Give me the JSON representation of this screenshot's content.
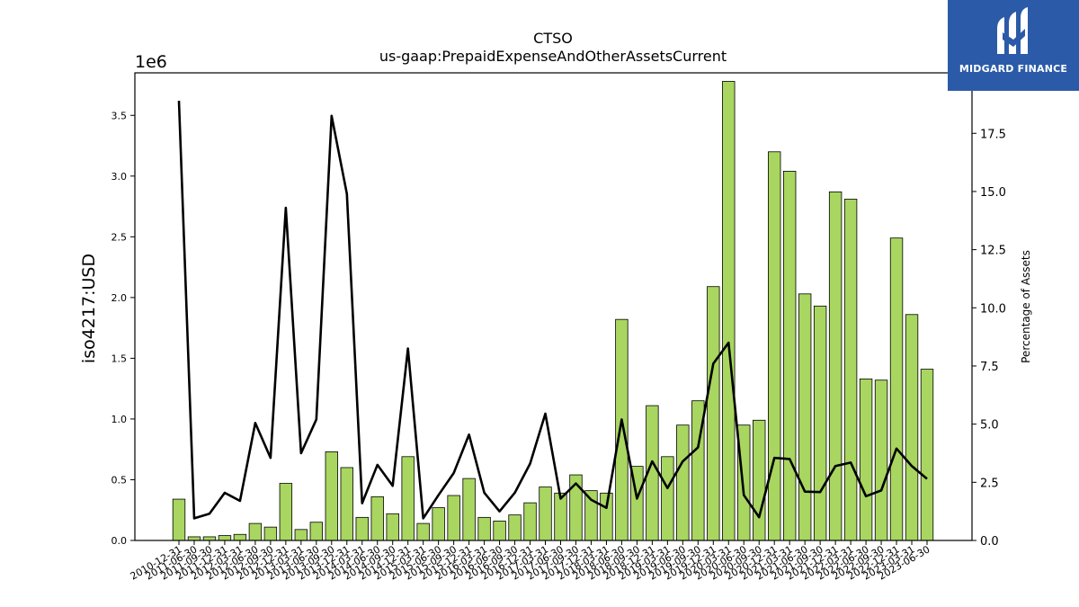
{
  "logo": {
    "text": "MIDGARD FINANCE"
  },
  "chart_data": {
    "type": "bar",
    "title": "CTSO",
    "subtitle": "us-gaap:PrepaidExpenseAndOtherAssetsCurrent",
    "ylabel": "iso4217:USD",
    "ylabel_right": "Percentage of Assets",
    "y_offset_text": "1e6",
    "ylim": [
      0,
      3.85
    ],
    "ylim_right": [
      0,
      20.1
    ],
    "yticks": [
      "0.0",
      "0.5",
      "1.0",
      "1.5",
      "2.0",
      "2.5",
      "3.0",
      "3.5"
    ],
    "yticks_right": [
      "0.0",
      "2.5",
      "5.0",
      "7.5",
      "10.0",
      "12.5",
      "15.0",
      "17.5"
    ],
    "bar_color": "#a8d660",
    "line_color": "#000000",
    "categories": [
      "2010-12-31",
      "2011-06-30",
      "2011-09-30",
      "2011-12-31",
      "2012-03-31",
      "2012-06-30",
      "2012-09-30",
      "2012-12-31",
      "2013-03-31",
      "2013-06-30",
      "2013-09-30",
      "2013-12-31",
      "2014-03-31",
      "2014-06-30",
      "2014-09-30",
      "2014-12-31",
      "2015-03-31",
      "2015-06-30",
      "2015-09-30",
      "2015-12-31",
      "2016-03-31",
      "2016-06-30",
      "2016-09-30",
      "2016-12-31",
      "2017-03-31",
      "2017-06-30",
      "2017-09-30",
      "2017-12-31",
      "2018-03-31",
      "2018-06-30",
      "2018-09-30",
      "2018-12-31",
      "2019-03-31",
      "2019-06-30",
      "2019-09-30",
      "2019-12-31",
      "2020-03-31",
      "2020-06-30",
      "2020-09-30",
      "2020-12-31",
      "2021-03-31",
      "2021-06-30",
      "2021-09-30",
      "2021-12-31",
      "2022-03-31",
      "2022-06-30",
      "2022-09-30",
      "2022-12-31",
      "2023-03-31",
      "2023-06-30"
    ],
    "series": [
      {
        "name": "iso4217:USD",
        "type": "bar",
        "axis": "left",
        "values": [
          0.34,
          0.03,
          0.03,
          0.04,
          0.05,
          0.14,
          0.11,
          0.47,
          0.09,
          0.15,
          0.73,
          0.6,
          0.19,
          0.36,
          0.22,
          0.69,
          0.14,
          0.27,
          0.37,
          0.51,
          0.19,
          0.16,
          0.21,
          0.31,
          0.44,
          0.39,
          0.54,
          0.41,
          0.39,
          1.82,
          0.61,
          1.11,
          0.69,
          0.95,
          1.15,
          2.09,
          3.78,
          0.95,
          0.99,
          3.2,
          3.04,
          2.03,
          1.93,
          2.87,
          2.81,
          1.33,
          1.32,
          2.49,
          1.86,
          1.41
        ]
      },
      {
        "name": "Percentage of Assets",
        "type": "line",
        "axis": "right",
        "values": [
          18.9,
          0.95,
          1.15,
          2.05,
          1.7,
          5.05,
          3.55,
          14.3,
          3.75,
          5.2,
          18.25,
          14.9,
          1.6,
          3.25,
          2.35,
          8.25,
          0.95,
          1.95,
          2.9,
          4.55,
          2.05,
          1.25,
          2.05,
          3.3,
          5.45,
          1.8,
          2.45,
          1.75,
          1.4,
          5.2,
          1.8,
          3.4,
          2.25,
          3.4,
          4.0,
          7.6,
          8.5,
          1.95,
          1.0,
          3.55,
          3.5,
          2.1,
          2.08,
          3.2,
          3.35,
          1.9,
          2.15,
          3.95,
          3.2,
          2.65
        ]
      }
    ]
  }
}
